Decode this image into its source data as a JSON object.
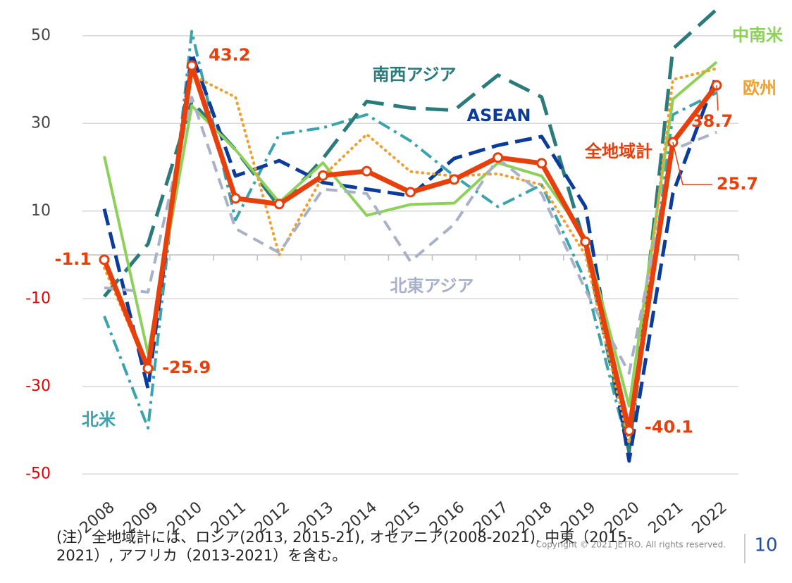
{
  "chart_data": {
    "type": "line",
    "categories": [
      "2008",
      "2009",
      "2010",
      "2011",
      "2012",
      "2013",
      "2014",
      "2015",
      "2016",
      "2017",
      "2018",
      "2019",
      "2020",
      "2021",
      "2022"
    ],
    "ylim": [
      -50,
      55
    ],
    "yticks": [
      -50,
      -30,
      -10,
      10,
      30,
      50
    ],
    "grid": true,
    "series": [
      {
        "name": "北米",
        "color": "#3aa3ad",
        "values": [
          -14,
          -39.5,
          51,
          8,
          27.5,
          29,
          32,
          26,
          18,
          11,
          16,
          -6,
          -45,
          32,
          37
        ]
      },
      {
        "name": "南西アジア",
        "color": "#2b7b7b",
        "values": [
          -9.5,
          2.5,
          35,
          24,
          11,
          22,
          35,
          33.5,
          33,
          41,
          36,
          2,
          -45,
          47,
          56
        ]
      },
      {
        "name": "ASEAN",
        "color": "#0b3c9c",
        "values": [
          10.5,
          -30.5,
          46,
          18,
          21.5,
          16.5,
          15,
          13.5,
          22,
          25,
          27,
          11,
          -47,
          14,
          41
        ]
      },
      {
        "name": "中南米",
        "color": "#8dd05a",
        "values": [
          22.5,
          -22.5,
          34,
          24,
          12,
          21,
          9,
          11.5,
          11.8,
          21,
          18,
          4,
          -34.5,
          35.5,
          44
        ]
      },
      {
        "name": "欧州",
        "color": "#f0a030",
        "values": [
          -3,
          -26,
          41,
          36,
          0,
          18,
          27.5,
          19,
          18,
          18.5,
          16,
          0,
          -43,
          40,
          42.5
        ]
      },
      {
        "name": "北東アジア",
        "color": "#a9b1c9",
        "values": [
          -7.5,
          -8.5,
          36,
          6,
          0.5,
          15,
          14,
          -1.5,
          7,
          22,
          14,
          -8,
          -27,
          24,
          28
        ]
      },
      {
        "name": "全地域計",
        "color": "#e8400c",
        "values": [
          -1.1,
          -25.9,
          43.2,
          12.9,
          11.6,
          18.1,
          19.1,
          14.3,
          17.2,
          22.2,
          20.9,
          3,
          -40.1,
          25.7,
          38.7
        ],
        "value_labels": [
          "-1.1",
          "-25.9",
          "43.2",
          null,
          null,
          null,
          null,
          null,
          null,
          null,
          null,
          null,
          "-40.1",
          "25.7",
          "38.7"
        ]
      }
    ]
  },
  "footer": {
    "note": [
      "(注）全地域計には、ロシア(2013, 2015-21), オセアニア(2008-2021), 中東（2015-",
      "2021）, アフリカ（2013-2021）を含む。"
    ],
    "copyright": "Copyright © 2021 JETRO. All rights reserved.",
    "page": "10"
  }
}
